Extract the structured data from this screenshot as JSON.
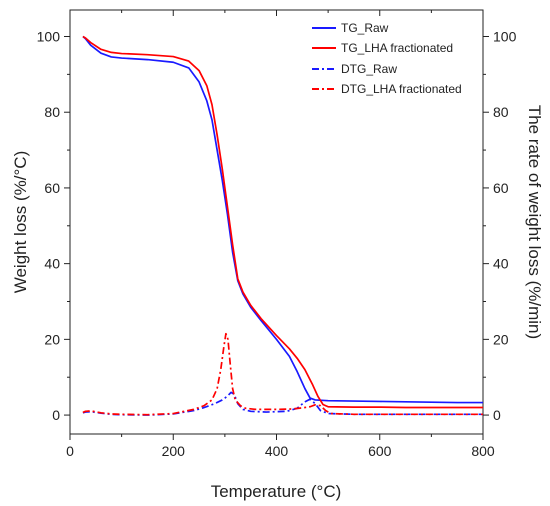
{
  "chart_data": {
    "type": "line",
    "title": "",
    "xlabel": "Temperature (°C)",
    "ylabel_left": "Weight loss (%/°C)",
    "ylabel_right": "The rate of weight loss (%/min)",
    "xlim": [
      0,
      800
    ],
    "ylim_left": [
      -5,
      107
    ],
    "ylim_right": [
      -5,
      107
    ],
    "xticks": [
      "0",
      "200",
      "400",
      "600",
      "800"
    ],
    "yticks_left": [
      "0",
      "20",
      "40",
      "60",
      "80",
      "100"
    ],
    "yticks_right": [
      "0",
      "20",
      "40",
      "60",
      "80",
      "100"
    ],
    "grid": false,
    "legend_position": "top-right",
    "series": [
      {
        "name": "TG_Raw",
        "color": "#1a1aff",
        "style": "solid",
        "x": [
          25,
          30,
          40,
          60,
          80,
          100,
          150,
          200,
          230,
          250,
          265,
          275,
          285,
          295,
          305,
          315,
          325,
          335,
          350,
          370,
          400,
          425,
          440,
          455,
          465,
          475,
          500,
          550,
          600,
          650,
          700,
          750,
          800
        ],
        "y": [
          100,
          99.4,
          97.7,
          95.6,
          94.6,
          94.3,
          93.9,
          93.2,
          91.7,
          88,
          83,
          78,
          70,
          62,
          53,
          43,
          35.5,
          32,
          28.5,
          25,
          20,
          15.5,
          11.5,
          7,
          4.5,
          4,
          3.8,
          3.7,
          3.6,
          3.5,
          3.4,
          3.3,
          3.3
        ]
      },
      {
        "name": "TG_LHA fractionated",
        "color": "#ff0000",
        "style": "solid",
        "x": [
          25,
          30,
          40,
          60,
          80,
          100,
          150,
          200,
          230,
          250,
          265,
          275,
          285,
          295,
          305,
          315,
          325,
          335,
          350,
          370,
          400,
          425,
          440,
          455,
          470,
          480,
          490,
          500,
          550,
          600,
          650,
          700,
          750,
          800
        ],
        "y": [
          100,
          99.6,
          98.4,
          96.6,
          95.8,
          95.5,
          95.2,
          94.7,
          93.5,
          91,
          87,
          82,
          74,
          65,
          55,
          45,
          36,
          32.5,
          29,
          25.5,
          21,
          17.5,
          15,
          12,
          8,
          5,
          2.8,
          2.2,
          2.1,
          2.1,
          2.0,
          2.0,
          2.0,
          2.0
        ]
      },
      {
        "name": "DTG_Raw",
        "color": "#1a1aff",
        "style": "dashdot",
        "x": [
          25,
          30,
          40,
          60,
          80,
          100,
          150,
          200,
          240,
          260,
          280,
          295,
          305,
          312,
          318,
          325,
          335,
          350,
          380,
          420,
          440,
          455,
          465,
          475,
          485,
          500,
          550,
          600,
          700,
          800
        ],
        "y": [
          0.6,
          0.8,
          0.9,
          0.5,
          0.2,
          0.1,
          0.0,
          0.3,
          1.2,
          2,
          3,
          4,
          5,
          6,
          5.5,
          3,
          1.5,
          1.0,
          0.8,
          1.0,
          1.8,
          3.5,
          4.2,
          3,
          1.2,
          0.4,
          0.2,
          0.2,
          0.2,
          0.2
        ]
      },
      {
        "name": "DTG_LHA fractionated",
        "color": "#ff0000",
        "style": "dashdot",
        "x": [
          25,
          30,
          40,
          60,
          80,
          100,
          150,
          200,
          240,
          260,
          275,
          285,
          292,
          298,
          302,
          306,
          310,
          315,
          320,
          330,
          340,
          360,
          400,
          430,
          450,
          465,
          475,
          485,
          495,
          505,
          550,
          600,
          700,
          800
        ],
        "y": [
          0.7,
          1.0,
          1.1,
          0.6,
          0.3,
          0.2,
          0.1,
          0.4,
          1.5,
          2.5,
          4,
          7,
          12,
          18,
          21.5,
          20,
          14,
          7,
          4,
          2.5,
          1.8,
          1.5,
          1.5,
          1.6,
          1.9,
          2.2,
          2.7,
          2.5,
          1.2,
          0.4,
          0.2,
          0.2,
          0.2,
          0.2
        ]
      }
    ]
  }
}
